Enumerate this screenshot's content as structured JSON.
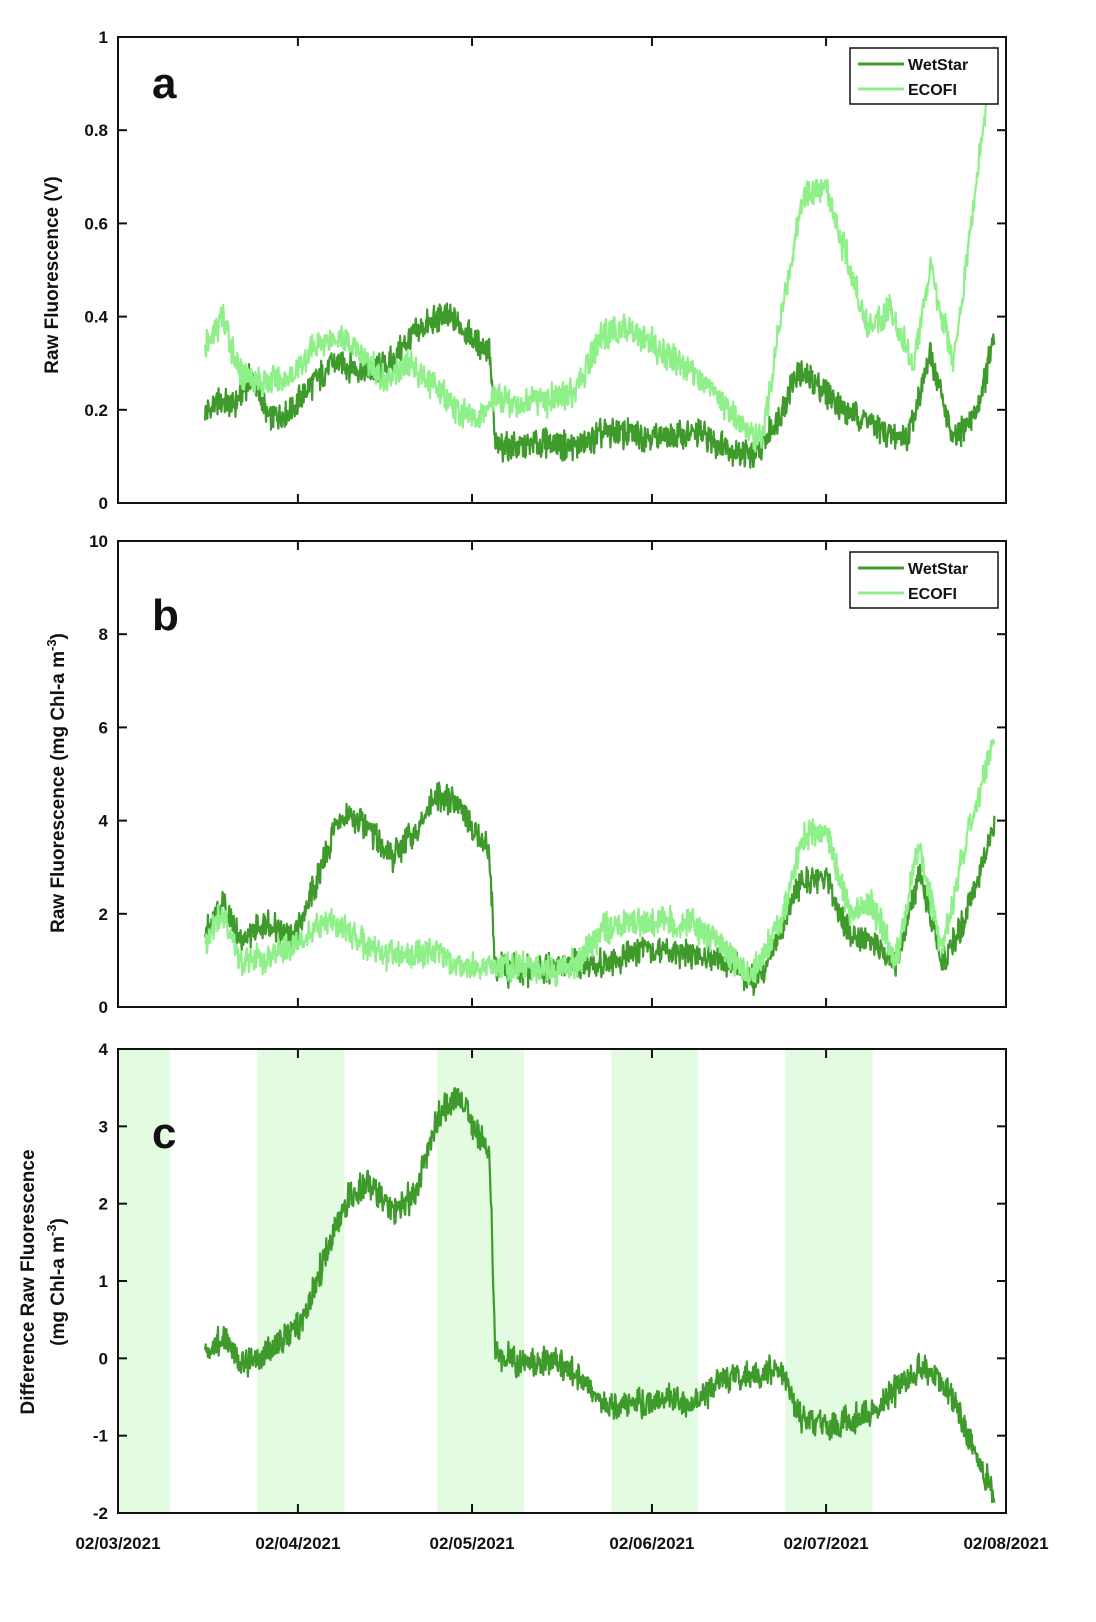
{
  "colors": {
    "wetstar": "#3e9a2a",
    "ecofi": "#8ff08a",
    "shade": "#e3fbe0",
    "axis": "#111111"
  },
  "chart_data": [
    {
      "type": "line",
      "panel": "a",
      "ylabel": "Raw Fluorescence (V)",
      "ylim": [
        0,
        1
      ],
      "yticks": [
        0,
        0.2,
        0.4,
        0.6,
        0.8,
        1
      ],
      "ytick_labels": [
        "0",
        "0.2",
        "0.4",
        "0.6",
        "0.8",
        "1"
      ],
      "xlim": [
        "2021-03-02",
        "2021-08-02"
      ],
      "legend": "top-right",
      "series": [
        {
          "name": "WetStar",
          "color": "#3e9a2a",
          "x": [
            "2021-03-17",
            "2021-03-20",
            "2021-03-22",
            "2021-03-25",
            "2021-03-28",
            "2021-04-01",
            "2021-04-04",
            "2021-04-08",
            "2021-04-10",
            "2021-04-14",
            "2021-04-18",
            "2021-04-21",
            "2021-04-24",
            "2021-04-27",
            "2021-04-30",
            "2021-05-03",
            "2021-05-05",
            "2021-05-06",
            "2021-05-10",
            "2021-05-15",
            "2021-05-20",
            "2021-05-25",
            "2021-05-30",
            "2021-06-05",
            "2021-06-10",
            "2021-06-15",
            "2021-06-20",
            "2021-06-24",
            "2021-06-27",
            "2021-07-01",
            "2021-07-05",
            "2021-07-09",
            "2021-07-12",
            "2021-07-16",
            "2021-07-20",
            "2021-07-24",
            "2021-07-28",
            "2021-07-31"
          ],
          "y": [
            0.19,
            0.22,
            0.21,
            0.27,
            0.18,
            0.2,
            0.25,
            0.3,
            0.3,
            0.28,
            0.3,
            0.35,
            0.38,
            0.4,
            0.38,
            0.34,
            0.33,
            0.12,
            0.12,
            0.13,
            0.12,
            0.15,
            0.15,
            0.14,
            0.15,
            0.12,
            0.1,
            0.19,
            0.28,
            0.25,
            0.2,
            0.18,
            0.15,
            0.14,
            0.32,
            0.13,
            0.2,
            0.35
          ]
        },
        {
          "name": "ECOFI",
          "color": "#8ff08a",
          "x": [
            "2021-03-17",
            "2021-03-20",
            "2021-03-23",
            "2021-03-27",
            "2021-04-01",
            "2021-04-05",
            "2021-04-09",
            "2021-04-13",
            "2021-04-17",
            "2021-04-21",
            "2021-04-25",
            "2021-04-29",
            "2021-05-03",
            "2021-05-06",
            "2021-05-10",
            "2021-05-15",
            "2021-05-20",
            "2021-05-24",
            "2021-05-28",
            "2021-06-02",
            "2021-06-07",
            "2021-06-12",
            "2021-06-17",
            "2021-06-21",
            "2021-06-24",
            "2021-06-28",
            "2021-07-02",
            "2021-07-05",
            "2021-07-09",
            "2021-07-13",
            "2021-07-17",
            "2021-07-20",
            "2021-07-24",
            "2021-07-28",
            "2021-07-31"
          ],
          "y": [
            0.33,
            0.4,
            0.28,
            0.26,
            0.27,
            0.34,
            0.36,
            0.32,
            0.26,
            0.3,
            0.26,
            0.2,
            0.18,
            0.23,
            0.21,
            0.22,
            0.24,
            0.35,
            0.38,
            0.34,
            0.3,
            0.25,
            0.17,
            0.14,
            0.38,
            0.66,
            0.68,
            0.55,
            0.38,
            0.42,
            0.3,
            0.5,
            0.3,
            0.7,
            0.98
          ]
        }
      ]
    },
    {
      "type": "line",
      "panel": "b",
      "ylabel": "Raw Fluorescence (mg Chl-a m",
      "ylabel_sup": "-3",
      "ylabel_end": ")",
      "ylim": [
        0,
        10
      ],
      "yticks": [
        0,
        2,
        4,
        6,
        8,
        10
      ],
      "ytick_labels": [
        "0",
        "2",
        "4",
        "6",
        "8",
        "10"
      ],
      "xlim": [
        "2021-03-02",
        "2021-08-02"
      ],
      "legend": "top-right",
      "series": [
        {
          "name": "WetStar",
          "color": "#3e9a2a",
          "x": [
            "2021-03-17",
            "2021-03-20",
            "2021-03-23",
            "2021-03-27",
            "2021-04-01",
            "2021-04-05",
            "2021-04-08",
            "2021-04-10",
            "2021-04-14",
            "2021-04-18",
            "2021-04-22",
            "2021-04-26",
            "2021-04-30",
            "2021-05-03",
            "2021-05-05",
            "2021-05-06",
            "2021-05-10",
            "2021-05-15",
            "2021-05-20",
            "2021-05-25",
            "2021-05-30",
            "2021-06-05",
            "2021-06-10",
            "2021-06-15",
            "2021-06-20",
            "2021-06-24",
            "2021-06-28",
            "2021-07-02",
            "2021-07-06",
            "2021-07-10",
            "2021-07-14",
            "2021-07-18",
            "2021-07-22",
            "2021-07-26",
            "2021-07-31"
          ],
          "y": [
            1.6,
            2.3,
            1.4,
            1.8,
            1.5,
            2.6,
            3.7,
            4.1,
            3.9,
            3.2,
            3.7,
            4.5,
            4.3,
            3.6,
            3.4,
            0.8,
            0.8,
            0.8,
            0.9,
            0.9,
            1.2,
            1.2,
            1.1,
            1.0,
            0.5,
            1.6,
            2.8,
            2.7,
            1.6,
            1.4,
            0.9,
            2.8,
            1.0,
            1.9,
            3.9
          ]
        },
        {
          "name": "ECOFI",
          "color": "#8ff08a",
          "x": [
            "2021-03-17",
            "2021-03-20",
            "2021-03-23",
            "2021-03-27",
            "2021-04-01",
            "2021-04-05",
            "2021-04-09",
            "2021-04-13",
            "2021-04-17",
            "2021-04-21",
            "2021-04-25",
            "2021-04-29",
            "2021-05-03",
            "2021-05-06",
            "2021-05-10",
            "2021-05-15",
            "2021-05-20",
            "2021-05-25",
            "2021-05-30",
            "2021-06-04",
            "2021-06-09",
            "2021-06-14",
            "2021-06-19",
            "2021-06-24",
            "2021-06-28",
            "2021-07-02",
            "2021-07-06",
            "2021-07-10",
            "2021-07-14",
            "2021-07-18",
            "2021-07-22",
            "2021-07-26",
            "2021-07-31"
          ],
          "y": [
            1.4,
            2.0,
            1.0,
            1.0,
            1.3,
            1.7,
            1.8,
            1.4,
            1.1,
            1.1,
            1.2,
            0.9,
            0.8,
            0.9,
            0.9,
            0.8,
            0.9,
            1.7,
            1.8,
            1.8,
            1.8,
            1.3,
            0.6,
            1.8,
            3.6,
            3.8,
            2.0,
            2.2,
            1.0,
            3.5,
            1.2,
            3.5,
            5.8
          ]
        }
      ]
    },
    {
      "type": "line",
      "panel": "c",
      "ylabel_line1": "Difference Raw Fluorescence",
      "ylabel_line2": "(mg Chl-a m",
      "ylabel_sup": "-3",
      "ylabel_end": ")",
      "ylim": [
        -2,
        4
      ],
      "yticks": [
        -2,
        -1,
        0,
        1,
        2,
        3,
        4
      ],
      "ytick_labels": [
        "-2",
        "-1",
        "0",
        "1",
        "2",
        "3",
        "4"
      ],
      "xlim": [
        "2021-03-02",
        "2021-08-02"
      ],
      "xticks": [
        "2021-03-02",
        "2021-04-02",
        "2021-05-02",
        "2021-06-02",
        "2021-07-02",
        "2021-08-02"
      ],
      "xtick_labels": [
        "02/03/2021",
        "02/04/2021",
        "02/05/2021",
        "02/06/2021",
        "02/07/2021",
        "02/08/2021"
      ],
      "shaded_spans": [
        [
          "2021-03-02",
          "2021-03-11"
        ],
        [
          "2021-03-26",
          "2021-04-10"
        ],
        [
          "2021-04-26",
          "2021-05-11"
        ],
        [
          "2021-05-26",
          "2021-06-10"
        ],
        [
          "2021-06-25",
          "2021-07-10"
        ]
      ],
      "series": [
        {
          "name": "",
          "color": "#3e9a2a",
          "x": [
            "2021-03-17",
            "2021-03-20",
            "2021-03-23",
            "2021-03-26",
            "2021-03-30",
            "2021-04-03",
            "2021-04-07",
            "2021-04-10",
            "2021-04-14",
            "2021-04-18",
            "2021-04-22",
            "2021-04-26",
            "2021-04-30",
            "2021-05-03",
            "2021-05-05",
            "2021-05-06",
            "2021-05-10",
            "2021-05-15",
            "2021-05-20",
            "2021-05-25",
            "2021-05-30",
            "2021-06-04",
            "2021-06-09",
            "2021-06-14",
            "2021-06-19",
            "2021-06-24",
            "2021-06-28",
            "2021-07-02",
            "2021-07-06",
            "2021-07-10",
            "2021-07-14",
            "2021-07-18",
            "2021-07-22",
            "2021-07-26",
            "2021-07-31"
          ],
          "y": [
            0.0,
            0.3,
            -0.1,
            0.0,
            0.2,
            0.5,
            1.4,
            2.0,
            2.3,
            1.9,
            2.1,
            3.1,
            3.4,
            2.9,
            2.7,
            0.1,
            -0.1,
            0.0,
            -0.2,
            -0.6,
            -0.6,
            -0.5,
            -0.6,
            -0.3,
            -0.2,
            -0.15,
            -0.8,
            -0.9,
            -0.8,
            -0.7,
            -0.4,
            -0.1,
            -0.3,
            -0.9,
            -1.8
          ]
        }
      ]
    }
  ],
  "panel_letters": {
    "a": "a",
    "b": "b",
    "c": "c"
  }
}
